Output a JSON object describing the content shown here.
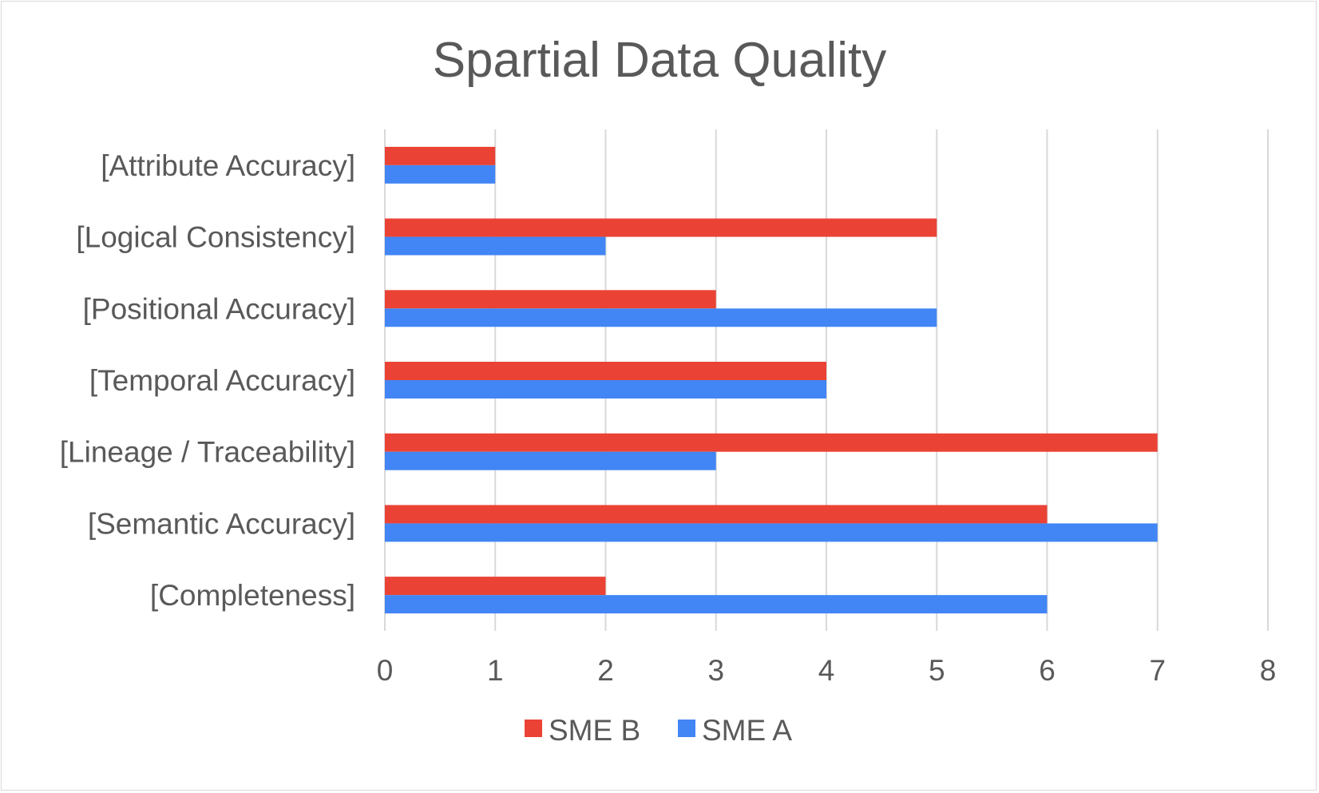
{
  "chart_data": {
    "type": "bar",
    "orientation": "horizontal",
    "title": "Spartial Data Quality",
    "categories": [
      "[Attribute Accuracy]",
      "[Logical Consistency]",
      "[Positional Accuracy]",
      "[Temporal Accuracy]",
      "[Lineage / Traceability]",
      "[Semantic Accuracy]",
      "[Completeness]"
    ],
    "series": [
      {
        "name": "SME B",
        "color": "#ea4335",
        "values": [
          1,
          5,
          3,
          4,
          7,
          6,
          2
        ]
      },
      {
        "name": "SME A",
        "color": "#4285f4",
        "values": [
          1,
          2,
          5,
          4,
          3,
          7,
          6
        ]
      }
    ],
    "xlim": [
      0,
      8
    ],
    "xticks": [
      "0",
      "1",
      "2",
      "3",
      "4",
      "5",
      "6",
      "7",
      "8"
    ],
    "xlabel": "",
    "ylabel": "",
    "grid": "vertical",
    "legend": "bottom"
  }
}
